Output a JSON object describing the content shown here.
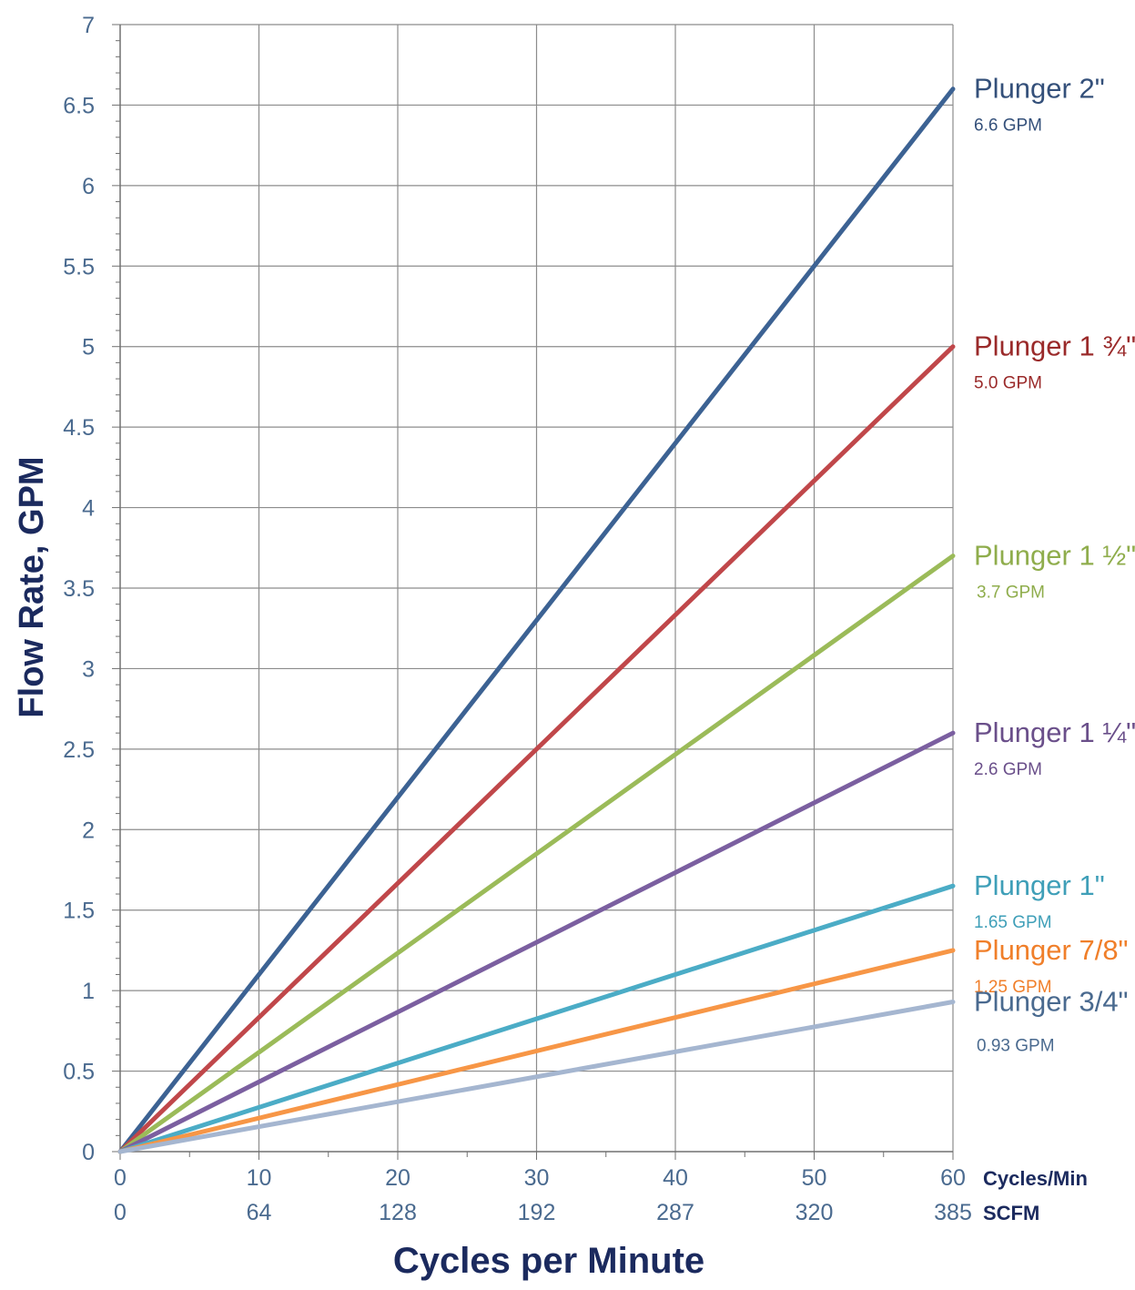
{
  "chart_data": {
    "type": "line",
    "xlabel": "Cycles per Minute",
    "ylabel": "Flow Rate, GPM",
    "xlim": [
      0,
      60
    ],
    "ylim": [
      0,
      7
    ],
    "x_ticks": [
      0,
      10,
      20,
      30,
      40,
      50,
      60
    ],
    "x_ticks_secondary": [
      "0",
      "64",
      "128",
      "192",
      "287",
      "320",
      "385"
    ],
    "x_unit_primary": "Cycles/Min",
    "x_unit_secondary": "SCFM",
    "y_ticks": [
      "0",
      "0.5",
      "1",
      "1.5",
      "2",
      "2.5",
      "3",
      "3.5",
      "4",
      "4.5",
      "5",
      "5.5",
      "6",
      "6.5",
      "7"
    ],
    "grid": true,
    "legend": "line-end labels on right",
    "series": [
      {
        "name": "Plunger 2\"",
        "end_label": "6.6 GPM",
        "color": "#3c6293",
        "x": [
          0,
          60
        ],
        "y": [
          0,
          6.6
        ]
      },
      {
        "name": "Plunger 1 ¾\"",
        "end_label": "5.0 GPM",
        "color": "#c0474a",
        "x": [
          0,
          60
        ],
        "y": [
          0,
          5.0
        ]
      },
      {
        "name": "Plunger 1 ½\"",
        "end_label": "3.7 GPM",
        "color": "#9bbb59",
        "x": [
          0,
          60
        ],
        "y": [
          0,
          3.7
        ]
      },
      {
        "name": "Plunger 1 ¼\"",
        "end_label": "2.6 GPM",
        "color": "#7b5fa0",
        "x": [
          0,
          60
        ],
        "y": [
          0,
          2.6
        ]
      },
      {
        "name": "Plunger 1\"",
        "end_label": "1.65 GPM",
        "color": "#4bacc6",
        "x": [
          0,
          60
        ],
        "y": [
          0,
          1.65
        ]
      },
      {
        "name": "Plunger 7/8\"",
        "end_label": "1.25 GPM",
        "color": "#f79646",
        "x": [
          0,
          60
        ],
        "y": [
          0,
          1.25
        ]
      },
      {
        "name": "Plunger 3/4\"",
        "end_label": "0.93 GPM",
        "color": "#a5b6d0",
        "x": [
          0,
          60
        ],
        "y": [
          0,
          0.93
        ]
      }
    ],
    "label_colors": [
      "#34507a",
      "#9a2a2a",
      "#8fad4c",
      "#6a4f8a",
      "#3f9fb8",
      "#f07f2a",
      "#4a6a8f"
    ]
  }
}
